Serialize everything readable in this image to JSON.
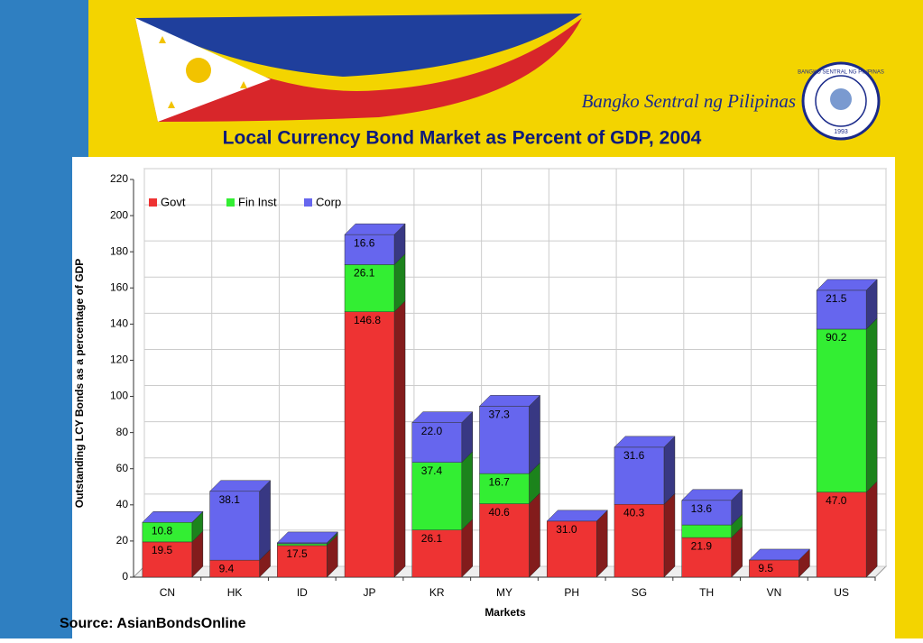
{
  "header": {
    "bank": "Bangko Sentral ng Pilipinas",
    "seal": "BANGKO SENTRAL NG PILIPINAS",
    "seal_year": "1993"
  },
  "chart_data": {
    "type": "bar3d_stacked",
    "title": "Local Currency Bond Market as Percent of GDP, 2004",
    "xlabel": "Markets",
    "ylabel": "Outstanding LCY Bonds as a percentage of GDP",
    "categories": [
      "CN",
      "HK",
      "ID",
      "JP",
      "KR",
      "MY",
      "PH",
      "SG",
      "TH",
      "VN",
      "US"
    ],
    "series": [
      {
        "name": "Govt",
        "color": "#ee3333",
        "values": [
          19.5,
          9.4,
          17.5,
          146.8,
          26.1,
          40.6,
          31.0,
          40.3,
          21.9,
          9.5,
          47.0
        ],
        "value_labels": [
          "19.5",
          "9.4",
          "17.5",
          "146.8",
          "26.1",
          "40.6",
          "31.0",
          "40.3",
          "21.9",
          "9.5",
          "47.0"
        ]
      },
      {
        "name": "Fin Inst",
        "color": "#33ee33",
        "values": [
          10.8,
          0,
          1.0,
          26.1,
          37.4,
          16.7,
          0,
          0,
          7,
          0,
          90.2
        ],
        "value_labels": [
          "10.8",
          null,
          null,
          "26.1",
          "37.4",
          "16.7",
          null,
          null,
          null,
          null,
          "90.2"
        ]
      },
      {
        "name": "Corp",
        "color": "#6666ee",
        "values": [
          0,
          38.1,
          0.5,
          16.6,
          22.0,
          37.3,
          0,
          31.6,
          13.6,
          0,
          21.5
        ],
        "value_labels": [
          null,
          "38.1",
          null,
          "16.6",
          "22.0",
          "37.3",
          null,
          "31.6",
          "13.6",
          null,
          "21.5"
        ]
      }
    ],
    "ylim": [
      0,
      220
    ],
    "yticks": [
      0,
      20,
      40,
      60,
      80,
      100,
      120,
      140,
      160,
      180,
      200,
      220
    ],
    "grid": true
  },
  "source": "Source: AsianBondsOnline"
}
